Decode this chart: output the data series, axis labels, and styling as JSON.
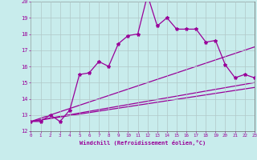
{
  "xlabel": "Windchill (Refroidissement éolien,°C)",
  "bg_color": "#c8ecec",
  "line_color": "#990099",
  "grid_color": "#b0c8c8",
  "xmin": 0,
  "xmax": 23,
  "ymin": 12,
  "ymax": 20,
  "series_x": [
    0,
    1,
    2,
    3,
    4,
    5,
    6,
    7,
    8,
    9,
    10,
    11,
    12,
    13,
    14,
    15,
    16,
    17,
    18,
    19,
    20,
    21,
    22,
    23
  ],
  "series_y": [
    12.6,
    12.6,
    13.0,
    12.6,
    13.3,
    15.5,
    15.6,
    16.3,
    16.0,
    17.4,
    17.9,
    18.0,
    20.4,
    18.5,
    19.0,
    18.3,
    18.3,
    18.3,
    17.5,
    17.6,
    16.1,
    15.3,
    15.5,
    15.3
  ],
  "straight_lines": [
    [
      [
        0,
        12.6
      ],
      [
        23,
        17.2
      ]
    ],
    [
      [
        0,
        12.6
      ],
      [
        23,
        15.0
      ]
    ],
    [
      [
        0,
        12.6
      ],
      [
        23,
        14.7
      ]
    ]
  ]
}
